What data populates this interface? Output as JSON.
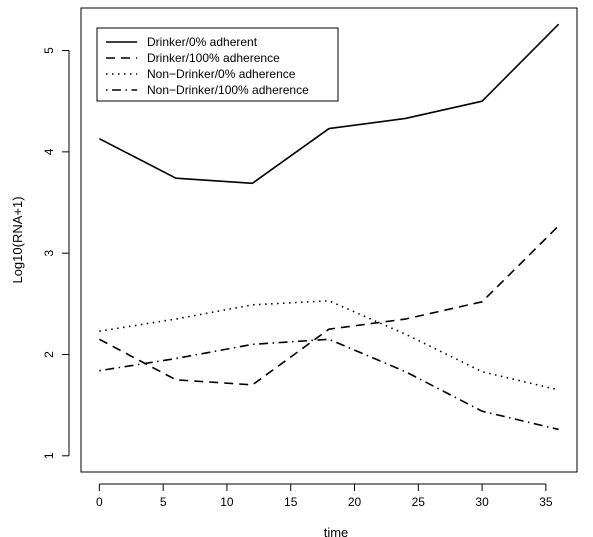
{
  "chart_data": {
    "type": "line",
    "title": "",
    "xlabel": "time",
    "ylabel": "Log10(RNA+1)",
    "x": [
      0,
      6,
      12,
      18,
      24,
      30,
      36
    ],
    "xlim": [
      -1.44,
      37.44
    ],
    "ylim": [
      0.84,
      5.42
    ],
    "xticks": [
      0,
      5,
      10,
      15,
      20,
      25,
      30,
      35
    ],
    "yticks": [
      1,
      2,
      3,
      4,
      5
    ],
    "grid": false,
    "legend_position": "top-left",
    "series": [
      {
        "name": "Drinker/0% adherent",
        "style": "solid",
        "values": [
          4.13,
          3.74,
          3.69,
          4.23,
          4.33,
          4.5,
          5.26
        ]
      },
      {
        "name": "Drinker/100% adherence",
        "style": "dashed",
        "values": [
          2.15,
          1.75,
          1.7,
          2.25,
          2.35,
          2.52,
          3.27
        ]
      },
      {
        "name": "Non−Drinker/0% adherence",
        "style": "dotted",
        "values": [
          2.23,
          2.35,
          2.49,
          2.53,
          2.2,
          1.83,
          1.65
        ]
      },
      {
        "name": "Non−Drinker/100% adherence",
        "style": "dotdash",
        "values": [
          1.84,
          1.96,
          2.1,
          2.15,
          1.83,
          1.44,
          1.26
        ]
      }
    ],
    "line_color": "#000000"
  }
}
